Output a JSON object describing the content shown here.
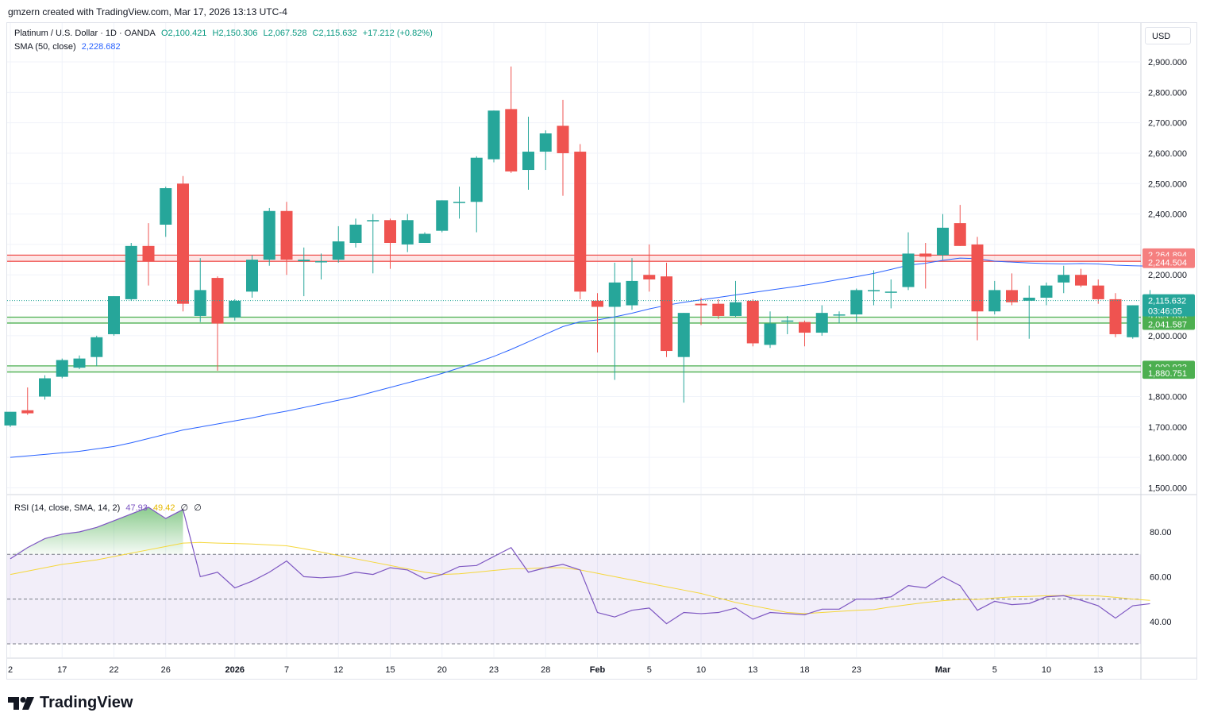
{
  "header": {
    "credit": "gmzern created with TradingView.com, Mar 17, 2026 13:13 UTC-4"
  },
  "legend": {
    "symbol": "Platinum / U.S. Dollar · 1D · OANDA",
    "open": "O2,100.421",
    "high": "H2,150.306",
    "low": "L2,067.528",
    "close": "C2,115.632",
    "change": "+17.212 (+0.82%)",
    "sma_label": "SMA (50, close)",
    "sma_value": "2,228.682",
    "rsi_label": "RSI (14, close, SMA, 14, 2)",
    "rsi_value": "47.93",
    "rsi_sma_value": "49.42",
    "rsi_extra1": "∅",
    "rsi_extra2": "∅"
  },
  "currency": "USD",
  "branding": {
    "name": "TradingView"
  },
  "colors": {
    "up": "#26a69a",
    "down": "#ef5350",
    "sma": "#2962ff",
    "rsi": "#7e57c2",
    "rsi_sma": "#f5d73a",
    "resistance": "#ef5350",
    "support": "#4caf50"
  },
  "chart_data": [
    {
      "type": "candlestick",
      "title": "Platinum / U.S. Dollar · 1D · OANDA",
      "y_ticks": [
        1500,
        1600,
        1700,
        1800,
        1900,
        2000,
        2100,
        2200,
        2300,
        2400,
        2500,
        2600,
        2700,
        2800,
        2900
      ],
      "y_tick_labels": [
        "1,500.000",
        "1,600.000",
        "1,700.000",
        "1,800.000",
        "1,900.000",
        "2,000.000",
        "2,100.000",
        "2,200.000",
        "",
        "2,400.000",
        "2,500.000",
        "2,600.000",
        "2,700.000",
        "2,800.000",
        "2,900.000"
      ],
      "ylim": [
        1480,
        2960
      ],
      "x_tick_labels": [
        {
          "i": 0,
          "label": "2"
        },
        {
          "i": 3,
          "label": "17"
        },
        {
          "i": 6,
          "label": "22"
        },
        {
          "i": 9,
          "label": "26"
        },
        {
          "i": 13,
          "label": "2026"
        },
        {
          "i": 16,
          "label": "7"
        },
        {
          "i": 19,
          "label": "12"
        },
        {
          "i": 22,
          "label": "15"
        },
        {
          "i": 25,
          "label": "20"
        },
        {
          "i": 28,
          "label": "23"
        },
        {
          "i": 31,
          "label": "28"
        },
        {
          "i": 34,
          "label": "Feb"
        },
        {
          "i": 37,
          "label": "5"
        },
        {
          "i": 40,
          "label": "10"
        },
        {
          "i": 43,
          "label": "13"
        },
        {
          "i": 46,
          "label": "18"
        },
        {
          "i": 49,
          "label": "23"
        },
        {
          "i": 54,
          "label": "Mar"
        },
        {
          "i": 57,
          "label": "5"
        },
        {
          "i": 60,
          "label": "10"
        },
        {
          "i": 63,
          "label": "13"
        }
      ],
      "candles": [
        {
          "o": 1705,
          "h": 1740,
          "l": 1700,
          "c": 1750
        },
        {
          "o": 1755,
          "h": 1830,
          "l": 1740,
          "c": 1745
        },
        {
          "o": 1800,
          "h": 1870,
          "l": 1790,
          "c": 1860
        },
        {
          "o": 1865,
          "h": 1925,
          "l": 1860,
          "c": 1920
        },
        {
          "o": 1895,
          "h": 1935,
          "l": 1890,
          "c": 1925
        },
        {
          "o": 1930,
          "h": 2000,
          "l": 1900,
          "c": 1995
        },
        {
          "o": 2005,
          "h": 2130,
          "l": 2000,
          "c": 2130
        },
        {
          "o": 2120,
          "h": 2305,
          "l": 2115,
          "c": 2295
        },
        {
          "o": 2295,
          "h": 2370,
          "l": 2165,
          "c": 2245
        },
        {
          "o": 2365,
          "h": 2490,
          "l": 2325,
          "c": 2485
        },
        {
          "o": 2500,
          "h": 2525,
          "l": 2080,
          "c": 2105
        },
        {
          "o": 2065,
          "h": 2255,
          "l": 2045,
          "c": 2150
        },
        {
          "o": 2190,
          "h": 2195,
          "l": 1885,
          "c": 2040
        },
        {
          "o": 2060,
          "h": 2120,
          "l": 2050,
          "c": 2115
        },
        {
          "o": 2145,
          "h": 2265,
          "l": 2125,
          "c": 2250
        },
        {
          "o": 2250,
          "h": 2420,
          "l": 2230,
          "c": 2410
        },
        {
          "o": 2410,
          "h": 2440,
          "l": 2200,
          "c": 2250
        },
        {
          "o": 2245,
          "h": 2290,
          "l": 2130,
          "c": 2250
        },
        {
          "o": 2245,
          "h": 2270,
          "l": 2185,
          "c": 2245
        },
        {
          "o": 2250,
          "h": 2360,
          "l": 2240,
          "c": 2310
        },
        {
          "o": 2305,
          "h": 2385,
          "l": 2290,
          "c": 2365
        },
        {
          "o": 2380,
          "h": 2400,
          "l": 2205,
          "c": 2380
        },
        {
          "o": 2380,
          "h": 2385,
          "l": 2220,
          "c": 2305
        },
        {
          "o": 2300,
          "h": 2400,
          "l": 2275,
          "c": 2380
        },
        {
          "o": 2305,
          "h": 2340,
          "l": 2305,
          "c": 2335
        },
        {
          "o": 2345,
          "h": 2445,
          "l": 2340,
          "c": 2445
        },
        {
          "o": 2440,
          "h": 2490,
          "l": 2385,
          "c": 2440
        },
        {
          "o": 2440,
          "h": 2590,
          "l": 2340,
          "c": 2585
        },
        {
          "o": 2580,
          "h": 2740,
          "l": 2570,
          "c": 2740
        },
        {
          "o": 2745,
          "h": 2885,
          "l": 2535,
          "c": 2540
        },
        {
          "o": 2545,
          "h": 2720,
          "l": 2480,
          "c": 2605
        },
        {
          "o": 2605,
          "h": 2675,
          "l": 2545,
          "c": 2665
        },
        {
          "o": 2690,
          "h": 2775,
          "l": 2460,
          "c": 2600
        },
        {
          "o": 2605,
          "h": 2630,
          "l": 2120,
          "c": 2145
        },
        {
          "o": 2115,
          "h": 2140,
          "l": 1945,
          "c": 2095
        },
        {
          "o": 2095,
          "h": 2240,
          "l": 1855,
          "c": 2175
        },
        {
          "o": 2100,
          "h": 2255,
          "l": 2085,
          "c": 2180
        },
        {
          "o": 2200,
          "h": 2300,
          "l": 2145,
          "c": 2185
        },
        {
          "o": 2195,
          "h": 2240,
          "l": 1930,
          "c": 1950
        },
        {
          "o": 1930,
          "h": 2075,
          "l": 1780,
          "c": 2075
        },
        {
          "o": 2105,
          "h": 2125,
          "l": 2035,
          "c": 2100
        },
        {
          "o": 2105,
          "h": 2120,
          "l": 2055,
          "c": 2065
        },
        {
          "o": 2065,
          "h": 2180,
          "l": 2060,
          "c": 2110
        },
        {
          "o": 2115,
          "h": 2120,
          "l": 1965,
          "c": 1975
        },
        {
          "o": 1970,
          "h": 2080,
          "l": 1960,
          "c": 2040
        },
        {
          "o": 2050,
          "h": 2065,
          "l": 2005,
          "c": 2050
        },
        {
          "o": 2045,
          "h": 2050,
          "l": 1965,
          "c": 2010
        },
        {
          "o": 2010,
          "h": 2100,
          "l": 2000,
          "c": 2075
        },
        {
          "o": 2070,
          "h": 2080,
          "l": 2040,
          "c": 2070
        },
        {
          "o": 2070,
          "h": 2155,
          "l": 2045,
          "c": 2150
        },
        {
          "o": 2150,
          "h": 2215,
          "l": 2100,
          "c": 2150
        },
        {
          "o": 2145,
          "h": 2185,
          "l": 2090,
          "c": 2145
        },
        {
          "o": 2160,
          "h": 2340,
          "l": 2150,
          "c": 2270
        },
        {
          "o": 2270,
          "h": 2305,
          "l": 2155,
          "c": 2260
        },
        {
          "o": 2265,
          "h": 2400,
          "l": 2250,
          "c": 2355
        },
        {
          "o": 2370,
          "h": 2430,
          "l": 2295,
          "c": 2295
        },
        {
          "o": 2300,
          "h": 2325,
          "l": 1985,
          "c": 2080
        },
        {
          "o": 2080,
          "h": 2180,
          "l": 2070,
          "c": 2150
        },
        {
          "o": 2150,
          "h": 2205,
          "l": 2100,
          "c": 2110
        },
        {
          "o": 2115,
          "h": 2165,
          "l": 1990,
          "c": 2125
        },
        {
          "o": 2125,
          "h": 2175,
          "l": 2100,
          "c": 2165
        },
        {
          "o": 2175,
          "h": 2230,
          "l": 2140,
          "c": 2200
        },
        {
          "o": 2200,
          "h": 2220,
          "l": 2160,
          "c": 2165
        },
        {
          "o": 2165,
          "h": 2185,
          "l": 2105,
          "c": 2120
        },
        {
          "o": 2120,
          "h": 2140,
          "l": 1995,
          "c": 2005
        },
        {
          "o": 1995,
          "h": 2100,
          "l": 1990,
          "c": 2100
        },
        {
          "o": 2100,
          "h": 2150,
          "l": 2068,
          "c": 2116
        }
      ],
      "sma_50": [
        1600,
        1605,
        1610,
        1615,
        1620,
        1628,
        1636,
        1648,
        1662,
        1676,
        1690,
        1700,
        1710,
        1720,
        1730,
        1742,
        1752,
        1764,
        1776,
        1788,
        1800,
        1815,
        1830,
        1845,
        1860,
        1876,
        1894,
        1912,
        1932,
        1955,
        1980,
        2005,
        2030,
        2046,
        2052,
        2062,
        2074,
        2088,
        2100,
        2110,
        2118,
        2126,
        2134,
        2142,
        2150,
        2158,
        2166,
        2175,
        2185,
        2194,
        2205,
        2218,
        2232,
        2238,
        2248,
        2255,
        2253,
        2245,
        2242,
        2239,
        2237,
        2236,
        2237,
        2236,
        2232,
        2230,
        2228.682
      ],
      "horizontal_levels": [
        {
          "value": 2264.894,
          "label": "2,264.894",
          "kind": "resistance"
        },
        {
          "value": 2244.504,
          "label": "2,244.504",
          "kind": "resistance"
        },
        {
          "value": 2061.019,
          "label": "2,061.019",
          "kind": "support"
        },
        {
          "value": 2041.587,
          "label": "2,041.587",
          "kind": "support"
        },
        {
          "value": 1900.933,
          "label": "1,900.933",
          "kind": "support"
        },
        {
          "value": 1880.751,
          "label": "1,880.751",
          "kind": "support"
        }
      ],
      "last_price": {
        "value": 2115.632,
        "label": "2,115.632",
        "countdown": "03:46:05"
      }
    },
    {
      "type": "line",
      "title": "RSI (14, close, SMA, 14, 2)",
      "ylim": [
        25,
        92
      ],
      "y_ticks": [
        40,
        60,
        80
      ],
      "y_tick_labels": [
        "40.00",
        "60.00",
        "80.00"
      ],
      "band": {
        "upper": 70,
        "middle": 50,
        "lower": 30
      },
      "series": [
        {
          "name": "RSI",
          "values": [
            68,
            73,
            77,
            79,
            80,
            82,
            85,
            88,
            91,
            86,
            90,
            60,
            62,
            55,
            58,
            62,
            67,
            60,
            59.5,
            60,
            62,
            61,
            64,
            63,
            59,
            61,
            64.5,
            65,
            69,
            73,
            62,
            64,
            65.5,
            63,
            44,
            42,
            45,
            46,
            39,
            44,
            43.5,
            44,
            46,
            41,
            44,
            43.5,
            43,
            45.5,
            45.5,
            50,
            50,
            51,
            56,
            55,
            60,
            56,
            45,
            49,
            47.5,
            48,
            51,
            51.5,
            49.5,
            47,
            41.5,
            47,
            47.93
          ]
        },
        {
          "name": "RSI-based MA",
          "values": [
            61,
            62.5,
            64,
            65.5,
            66.5,
            67.5,
            69,
            70.5,
            72,
            73.5,
            75,
            75.3,
            75,
            74.8,
            74.6,
            74.2,
            73.8,
            72.5,
            71,
            69.5,
            68,
            66.5,
            65,
            63.5,
            62,
            61,
            61.3,
            62,
            62.8,
            63.5,
            63.6,
            64,
            64,
            63,
            61.5,
            60,
            58.5,
            57,
            55.5,
            54,
            52.5,
            50.5,
            48.5,
            47,
            45.5,
            44,
            43.5,
            44,
            44.5,
            45,
            45.3,
            46.5,
            47.5,
            48.5,
            49.3,
            49.8,
            49.8,
            50.5,
            51,
            51.2,
            51.5,
            51.6,
            51.6,
            51.4,
            50.8,
            50,
            49.42
          ]
        }
      ],
      "overbought_fill_points": 11
    }
  ]
}
